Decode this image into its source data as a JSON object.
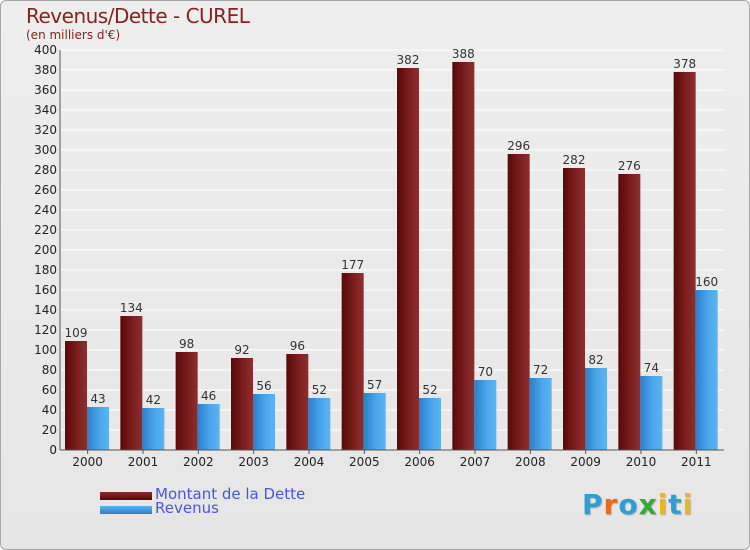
{
  "title": "Revenus/Dette - CUREL",
  "subtitle": "(en milliers d'€)",
  "legend": [
    {
      "label": "Montant de la Dette",
      "color": "#6b0c0c"
    },
    {
      "label": "Revenus",
      "color": "#3d9be3"
    }
  ],
  "logo": {
    "letters": [
      "P",
      "r",
      "o",
      "x",
      "i",
      "t",
      "i"
    ],
    "colors": [
      "#2aa0d8",
      "#e86a1c",
      "#2aa0d8",
      "#3aa834",
      "#e8b81c",
      "#2aa0d8",
      "#e8b81c"
    ]
  },
  "colors": {
    "dette": "#6b0c0c",
    "dette_light": "#8c2f2f",
    "revenus": "#2d7ec8",
    "revenus_light": "#5cb3f0",
    "axis_text": "#222222"
  },
  "chart_data": {
    "type": "bar",
    "categories": [
      "2000",
      "2001",
      "2002",
      "2003",
      "2004",
      "2005",
      "2006",
      "2007",
      "2008",
      "2009",
      "2010",
      "2011"
    ],
    "series": [
      {
        "name": "Montant de la Dette",
        "values": [
          109,
          134,
          98,
          92,
          96,
          177,
          382,
          388,
          296,
          282,
          276,
          378
        ]
      },
      {
        "name": "Revenus",
        "values": [
          43,
          42,
          46,
          56,
          52,
          57,
          52,
          70,
          72,
          82,
          74,
          160
        ]
      }
    ],
    "ylim": [
      0,
      400
    ],
    "yticks": [
      0,
      20,
      40,
      60,
      80,
      100,
      120,
      140,
      160,
      180,
      200,
      220,
      240,
      260,
      280,
      300,
      320,
      340,
      360,
      380,
      400
    ],
    "grid": true
  }
}
